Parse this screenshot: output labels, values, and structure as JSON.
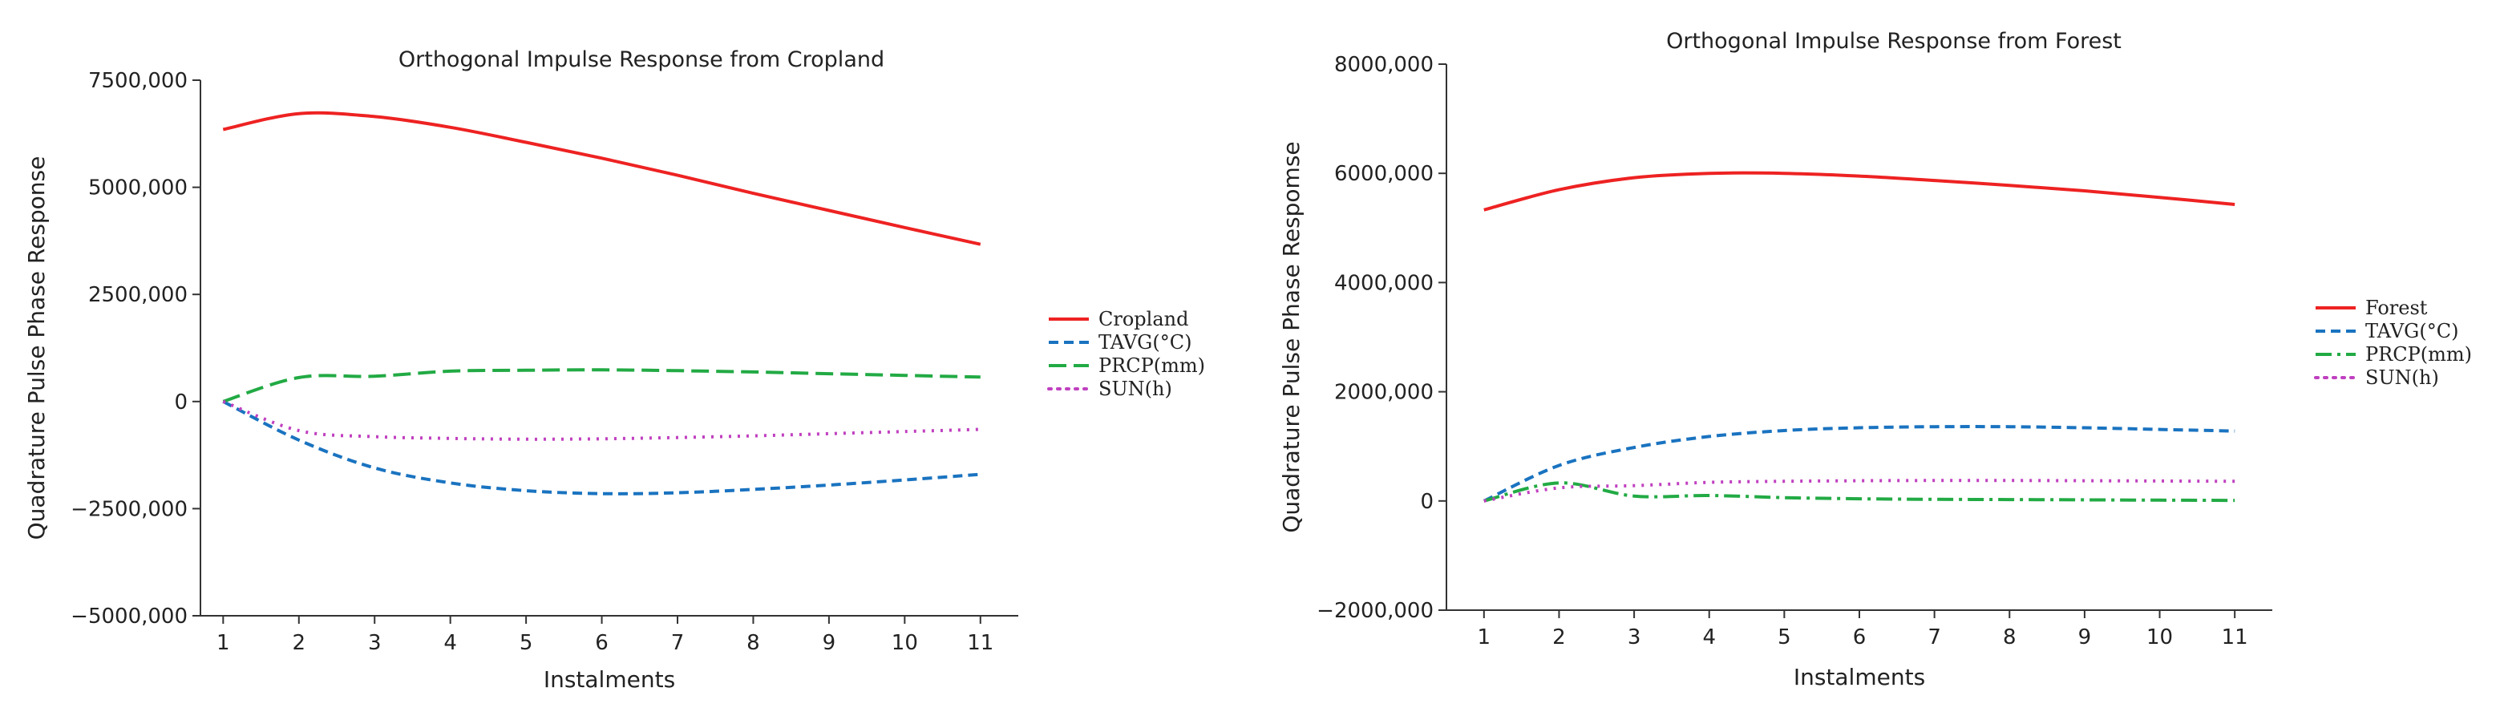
{
  "chart_data": [
    {
      "type": "line",
      "title": "Orthogonal Impulse Response from Cropland",
      "xlabel": "Instalments",
      "ylabel": "Quadrature Pulse Phase Response",
      "x": [
        1,
        2,
        3,
        4,
        5,
        6,
        7,
        8,
        9,
        10,
        11
      ],
      "xlim": [
        0.7,
        11.5
      ],
      "ylim": [
        -5000000,
        7500000
      ],
      "yticks": [
        -5000000,
        -2500000,
        0,
        2500000,
        5000000,
        7500000
      ],
      "ytick_labels": [
        "−5000,000",
        "−2500,000",
        "0",
        "2500,000",
        "5000,000",
        "7500,000"
      ],
      "grid": false,
      "legend_position": "right",
      "series": [
        {
          "name": "Cropland",
          "color": "#ee2222",
          "dash": "solid",
          "values": [
            6350000,
            6720000,
            6650000,
            6400000,
            6050000,
            5680000,
            5280000,
            4860000,
            4460000,
            4060000,
            3670000
          ]
        },
        {
          "name": "TAVG(°C)",
          "color": "#1a73c0",
          "dash": "dashed",
          "values": [
            0,
            -900000,
            -1550000,
            -1900000,
            -2080000,
            -2150000,
            -2130000,
            -2050000,
            -1950000,
            -1830000,
            -1700000
          ]
        },
        {
          "name": "PRCP(mm)",
          "color": "#22aa44",
          "dash": "longdash",
          "values": [
            0,
            560000,
            590000,
            710000,
            730000,
            740000,
            720000,
            690000,
            650000,
            610000,
            570000
          ]
        },
        {
          "name": "SUN(h)",
          "color": "#c040c0",
          "dash": "dotted",
          "values": [
            0,
            -680000,
            -820000,
            -860000,
            -880000,
            -870000,
            -840000,
            -800000,
            -750000,
            -700000,
            -650000
          ]
        }
      ]
    },
    {
      "type": "line",
      "title": "Orthogonal Impulse Response from Forest",
      "xlabel": "Instalments",
      "ylabel": "Quadrature Pulse Phase Respomse",
      "x": [
        1,
        2,
        3,
        4,
        5,
        6,
        7,
        8,
        9,
        10,
        11
      ],
      "xlim": [
        0.5,
        11.5
      ],
      "ylim": [
        -2000000,
        8000000
      ],
      "yticks": [
        -2000000,
        0,
        2000000,
        4000000,
        6000000,
        8000000
      ],
      "ytick_labels": [
        "−2000,000",
        "0",
        "2000,000",
        "4000,000",
        "6000,000",
        "8000,000"
      ],
      "grid": false,
      "legend_position": "right",
      "series": [
        {
          "name": "Forest",
          "color": "#ee2222",
          "dash": "solid",
          "values": [
            5330000,
            5700000,
            5920000,
            6000000,
            6000000,
            5950000,
            5870000,
            5780000,
            5680000,
            5560000,
            5430000
          ]
        },
        {
          "name": "TAVG(°C)",
          "color": "#1a73c0",
          "dash": "dashed",
          "values": [
            0,
            650000,
            980000,
            1180000,
            1290000,
            1340000,
            1360000,
            1360000,
            1340000,
            1310000,
            1280000
          ]
        },
        {
          "name": "PRCP(mm)",
          "color": "#22aa44",
          "dash": "dashdot",
          "values": [
            0,
            330000,
            90000,
            100000,
            60000,
            40000,
            30000,
            25000,
            20000,
            15000,
            10000
          ]
        },
        {
          "name": "SUN(h)",
          "color": "#c040c0",
          "dash": "dotted",
          "values": [
            0,
            240000,
            280000,
            340000,
            360000,
            370000,
            375000,
            375000,
            370000,
            365000,
            360000
          ]
        }
      ]
    }
  ]
}
